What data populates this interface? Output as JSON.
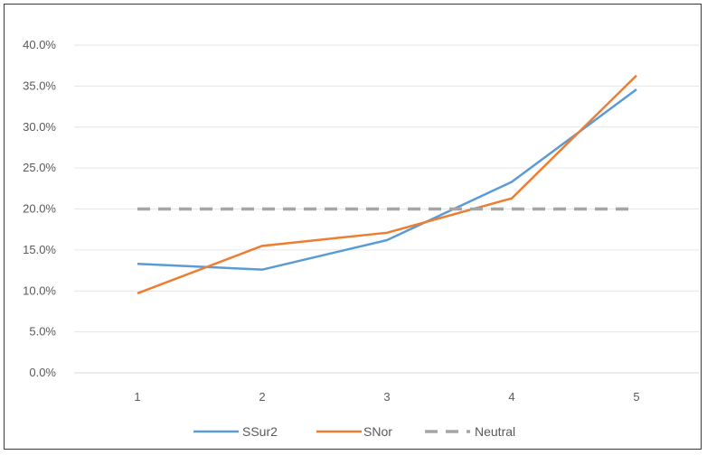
{
  "chart_data": {
    "type": "line",
    "categories": [
      "1",
      "2",
      "3",
      "4",
      "5"
    ],
    "series": [
      {
        "name": "SSur2",
        "values": [
          13.3,
          12.6,
          16.2,
          23.3,
          34.6
        ],
        "color": "#5b9bd5",
        "dash": "solid"
      },
      {
        "name": "SNor",
        "values": [
          9.7,
          15.5,
          17.1,
          21.3,
          36.3
        ],
        "color": "#ed7d31",
        "dash": "solid"
      },
      {
        "name": "Neutral",
        "values": [
          20.0,
          20.0,
          20.0,
          20.0,
          20.0
        ],
        "color": "#a5a5a5",
        "dash": "dashed"
      }
    ],
    "y_ticks": [
      "0.0%",
      "5.0%",
      "10.0%",
      "15.0%",
      "20.0%",
      "25.0%",
      "30.0%",
      "35.0%",
      "40.0%"
    ],
    "ylim": [
      0,
      40
    ],
    "grid": true,
    "legend_position": "bottom",
    "title": "",
    "xlabel": "",
    "ylabel": ""
  }
}
